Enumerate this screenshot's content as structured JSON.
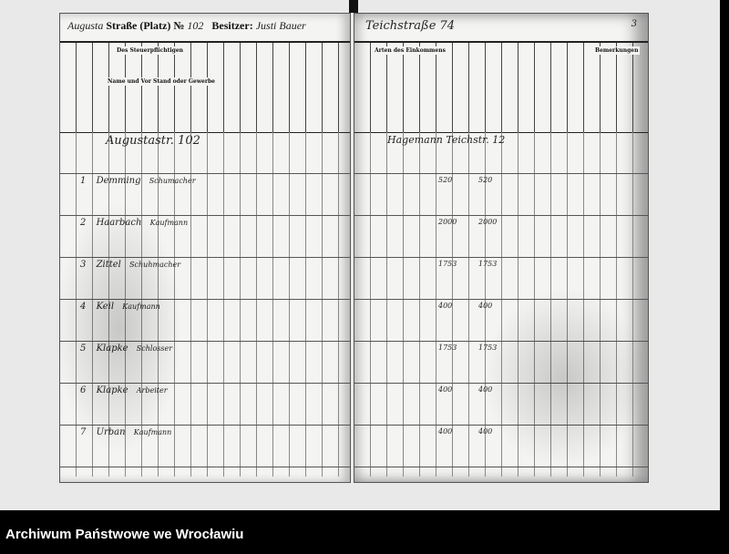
{
  "left_page": {
    "street_handwritten": "Augusta",
    "street_label": "Straße (Platz) №",
    "house_number": "102",
    "owner_label": "Besitzer:",
    "owner_handwritten": "Justi Bauer",
    "section_heading": "Des Steuerpflichtigen",
    "col_name": "Name und Vorname",
    "col_stand": "Stand oder Gewerbe",
    "address_line": "Augustastr. 102",
    "rows": [
      {
        "no": "1",
        "name": "Demming",
        "occupation": "Schumacher"
      },
      {
        "no": "2",
        "name": "Haarbach",
        "occupation": "Kaufmann"
      },
      {
        "no": "3",
        "name": "Zittel",
        "occupation": "Schuhmacher"
      },
      {
        "no": "4",
        "name": "Keil",
        "occupation": "Kaufmann"
      },
      {
        "no": "5",
        "name": "Klapke",
        "occupation": "Schlosser"
      },
      {
        "no": "6",
        "name": "Klapke",
        "occupation": "Arbeiter"
      },
      {
        "no": "7",
        "name": "Urban",
        "occupation": "Kaufmann"
      }
    ]
  },
  "right_page": {
    "street_continuation": "Teichstraße 74",
    "page_number": "3",
    "section_heading": "Arten des Einkommens",
    "col_remarks": "Bemerkungen",
    "address_line": "Hagemann Teichstr. 12",
    "incomes": [
      "520",
      "2000",
      "1753",
      "400",
      "1753",
      "400",
      "400"
    ]
  },
  "footer": {
    "archive_name": "Archiwum Państwowe we Wrocławiu"
  }
}
